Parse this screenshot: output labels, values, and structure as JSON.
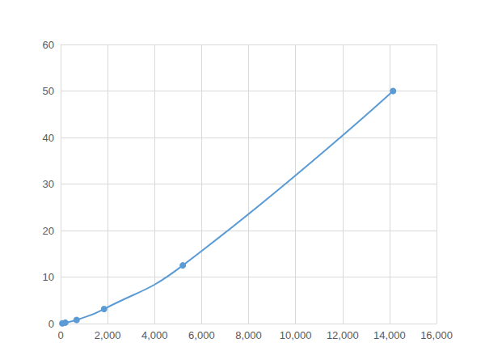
{
  "chart_data": {
    "type": "line",
    "x": [
      70,
      200,
      680,
      1850,
      5200,
      14150
    ],
    "values": [
      0.049,
      0.195,
      0.781,
      3.125,
      12.5,
      50
    ],
    "color": "#5b9bd5",
    "marker": "circle",
    "line_style": "smooth",
    "xlim": [
      0,
      16000
    ],
    "xticks": [
      0,
      2000,
      4000,
      6000,
      8000,
      10000,
      12000,
      14000,
      16000
    ],
    "ylim": [
      0,
      60
    ],
    "yticks": [
      0,
      10,
      20,
      30,
      40,
      50,
      60
    ],
    "grid": true
  }
}
